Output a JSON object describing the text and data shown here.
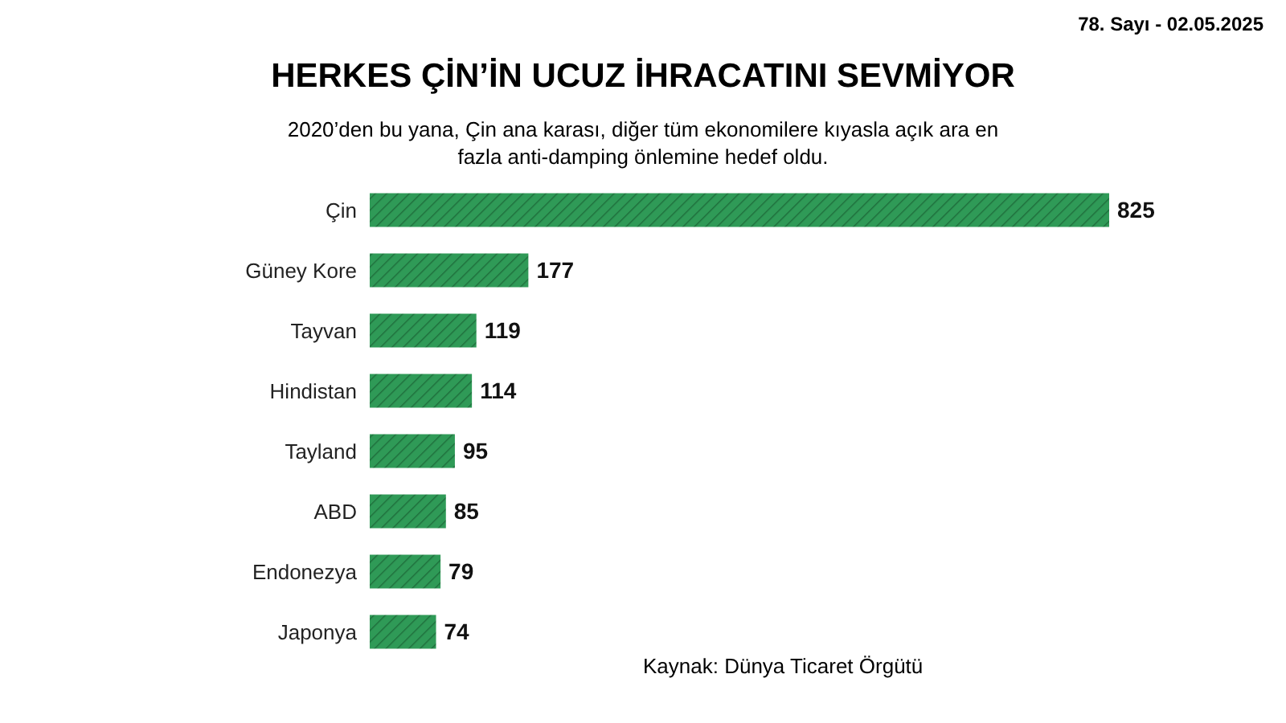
{
  "chart_data": {
    "type": "bar",
    "orientation": "horizontal",
    "title": "HERKES ÇİN’İN UCUZ İHRACATINI SEVMİYOR",
    "subtitle": "2020’den bu yana, Çin ana karası, diğer tüm ekonomilere kıyasla açık ara en fazla anti-damping önlemine hedef oldu.",
    "categories": [
      "Çin",
      "Güney Kore",
      "Tayvan",
      "Hindistan",
      "Tayland",
      "ABD",
      "Endonezya",
      "Japonya"
    ],
    "values": [
      825,
      177,
      119,
      114,
      95,
      85,
      79,
      74
    ],
    "color": "#2f9a57",
    "data_labels": true,
    "annotations": [
      "Kaynak: Dünya Ticaret Örgütü",
      "78. Sayı - 02.05.2025"
    ]
  }
}
